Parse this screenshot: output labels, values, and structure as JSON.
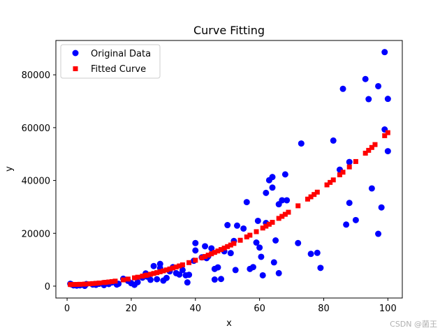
{
  "watermark": "CSDN @菌王",
  "colors": {
    "original": "#0000ff",
    "fitted": "#ff0000",
    "frame": "#000000"
  },
  "chart_data": {
    "type": "scatter",
    "title": "Curve Fitting",
    "xlabel": "x",
    "ylabel": "y",
    "xlim": [
      -3.5,
      104.5
    ],
    "ylim": [
      -4500,
      93000
    ],
    "xticks": [
      0,
      20,
      40,
      60,
      80,
      100
    ],
    "xtick_labels": [
      "0",
      "20",
      "40",
      "60",
      "80",
      "100"
    ],
    "yticks": [
      0,
      20000,
      40000,
      60000,
      80000
    ],
    "ytick_labels": [
      "0",
      "20000",
      "40000",
      "60000",
      "80000"
    ],
    "grid": false,
    "legend_position": "top-left",
    "series": [
      {
        "name": "Original Data",
        "marker": "circle",
        "color": "#0000ff",
        "points": [
          [
            1.3,
            700
          ],
          [
            2.0,
            300
          ],
          [
            3.0,
            200
          ],
          [
            4.0,
            300
          ],
          [
            5.5,
            100
          ],
          [
            8.0,
            600
          ],
          [
            10.0,
            900
          ],
          [
            11.5,
            400
          ],
          [
            12.0,
            1200
          ],
          [
            13.0,
            800
          ],
          [
            14.0,
            1400
          ],
          [
            15.5,
            600
          ],
          [
            17.5,
            2800
          ],
          [
            19.0,
            2000
          ],
          [
            21.0,
            500
          ],
          [
            22.0,
            1500
          ],
          [
            23.5,
            3200
          ],
          [
            24.5,
            4800
          ],
          [
            26.0,
            2400
          ],
          [
            27.0,
            7600
          ],
          [
            28.0,
            2600
          ],
          [
            29.0,
            8400
          ],
          [
            29.0,
            6800
          ],
          [
            30.0,
            2100
          ],
          [
            31.0,
            3100
          ],
          [
            32.0,
            5600
          ],
          [
            33.0,
            7200
          ],
          [
            34.0,
            4900
          ],
          [
            35.0,
            4400
          ],
          [
            36.0,
            6100
          ],
          [
            37.0,
            4100
          ],
          [
            37.5,
            1400
          ],
          [
            38.0,
            4300
          ],
          [
            39.5,
            9600
          ],
          [
            40.0,
            16300
          ],
          [
            40.0,
            13500
          ],
          [
            42.0,
            10900
          ],
          [
            43.0,
            15100
          ],
          [
            44.0,
            11300
          ],
          [
            45.0,
            14300
          ],
          [
            46.0,
            2500
          ],
          [
            46.0,
            6500
          ],
          [
            47.0,
            7100
          ],
          [
            48.0,
            2700
          ],
          [
            49.0,
            13200
          ],
          [
            50.0,
            23100
          ],
          [
            51.0,
            12500
          ],
          [
            52.0,
            17100
          ],
          [
            52.5,
            6100
          ],
          [
            53.0,
            22900
          ],
          [
            55.0,
            21800
          ],
          [
            56.0,
            31800
          ],
          [
            57.0,
            6500
          ],
          [
            58.0,
            7200
          ],
          [
            59.0,
            16500
          ],
          [
            59.5,
            24700
          ],
          [
            60.0,
            14600
          ],
          [
            60.5,
            11100
          ],
          [
            61.0,
            4100
          ],
          [
            62.0,
            23900
          ],
          [
            62.0,
            35300
          ],
          [
            63.0,
            40100
          ],
          [
            64.0,
            41300
          ],
          [
            64.0,
            37300
          ],
          [
            64.5,
            9000
          ],
          [
            65.0,
            17300
          ],
          [
            66.0,
            31000
          ],
          [
            66.0,
            4900
          ],
          [
            67.0,
            32500
          ],
          [
            68.0,
            42300
          ],
          [
            68.5,
            32500
          ],
          [
            72.0,
            16300
          ],
          [
            73.0,
            54000
          ],
          [
            76.0,
            12200
          ],
          [
            78.0,
            12600
          ],
          [
            79.0,
            6900
          ],
          [
            83.0,
            55100
          ],
          [
            85.0,
            44100
          ],
          [
            86.0,
            74700
          ],
          [
            87.0,
            23300
          ],
          [
            88.0,
            47000
          ],
          [
            88.0,
            31500
          ],
          [
            90.0,
            25000
          ],
          [
            93.0,
            78400
          ],
          [
            94.0,
            70800
          ],
          [
            95.0,
            37000
          ],
          [
            97.0,
            75700
          ],
          [
            97.0,
            19800
          ],
          [
            98.0,
            29800
          ],
          [
            99.0,
            88600
          ],
          [
            99.0,
            59300
          ],
          [
            100.0,
            70900
          ],
          [
            100.0,
            51100
          ],
          [
            1.0,
            900
          ],
          [
            6.0,
            800
          ],
          [
            9.0,
            500
          ],
          [
            16.0,
            900
          ],
          [
            20.0,
            1100
          ],
          [
            25.0,
            3600
          ],
          [
            43.5,
            10600
          ]
        ]
      },
      {
        "name": "Fitted Curve",
        "marker": "square",
        "color": "#ff0000",
        "fit": {
          "form": "a*x^2 + b*x + c",
          "a": 5.75,
          "b": 0,
          "c": 600
        },
        "x": [
          1.0,
          1.3,
          2.0,
          3.0,
          4.0,
          5.5,
          7.0,
          8.0,
          9.0,
          10.0,
          11.5,
          12.0,
          13.0,
          14.0,
          15.0,
          17.5,
          19.0,
          21.0,
          22.0,
          23.5,
          24.5,
          25.0,
          26.0,
          27.0,
          28.0,
          29.0,
          30.0,
          31.0,
          32.0,
          33.0,
          34.0,
          35.0,
          36.0,
          38.0,
          40.0,
          42.0,
          43.0,
          44.0,
          45.0,
          46.0,
          47.0,
          48.0,
          49.0,
          50.0,
          51.0,
          52.0,
          54.0,
          56.0,
          57.0,
          59.0,
          61.0,
          62.0,
          63.0,
          64.0,
          66.0,
          67.0,
          68.0,
          69.0,
          72.0,
          75.0,
          76.0,
          77.0,
          78.0,
          81.0,
          82.0,
          83.0,
          85.0,
          86.0,
          88.0,
          90.0,
          93.0,
          94.0,
          95.0,
          96.0,
          99.0,
          100.0
        ]
      }
    ]
  }
}
